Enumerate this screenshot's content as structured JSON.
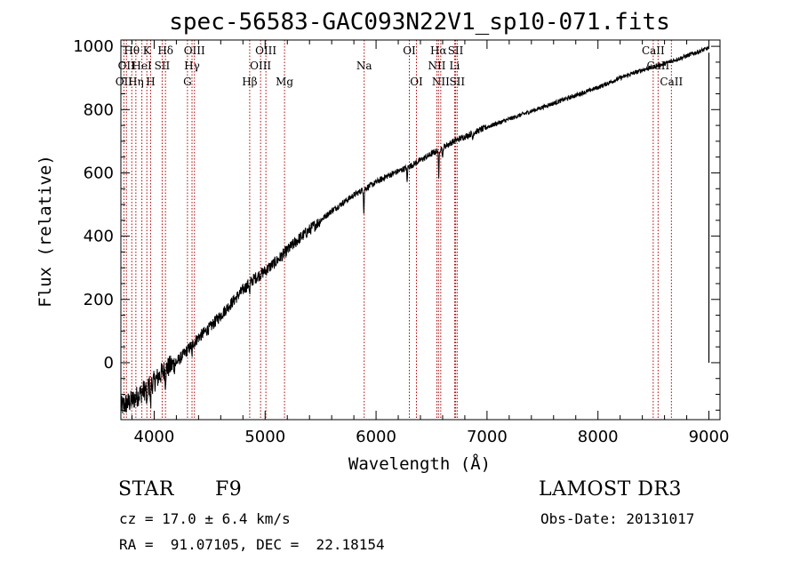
{
  "chart_data": {
    "type": "line",
    "title": "spec-56583-GAC093N22V1_sp10-071.fits",
    "xlabel": "Wavelength (Å)",
    "ylabel": "Flux (relative)",
    "xlim": [
      3700,
      9100
    ],
    "ylim": [
      -180,
      1020
    ],
    "xticks": [
      4000,
      5000,
      6000,
      7000,
      8000,
      9000
    ],
    "yticks": [
      0,
      200,
      400,
      600,
      800,
      1000
    ],
    "spectrum_anchors": {
      "x": [
        3700,
        3800,
        3900,
        4000,
        4100,
        4200,
        4300,
        4400,
        4500,
        4600,
        4700,
        4800,
        4900,
        5000,
        5100,
        5200,
        5300,
        5400,
        5500,
        5600,
        5700,
        5800,
        5900,
        6000,
        6100,
        6200,
        6300,
        6400,
        6500,
        6600,
        6700,
        6800,
        6900,
        7000,
        7200,
        7400,
        7600,
        7800,
        8000,
        8200,
        8400,
        8600,
        8800,
        9000
      ],
      "y": [
        -140,
        -120,
        -90,
        -60,
        -20,
        0,
        40,
        80,
        110,
        150,
        190,
        230,
        265,
        290,
        320,
        355,
        390,
        420,
        450,
        480,
        505,
        530,
        550,
        570,
        590,
        605,
        620,
        640,
        660,
        680,
        700,
        715,
        730,
        745,
        770,
        795,
        820,
        845,
        870,
        900,
        925,
        945,
        970,
        995
      ]
    },
    "absorption_dips": [
      {
        "x": 5890,
        "depth": 70
      },
      {
        "x": 6280,
        "depth": 50
      },
      {
        "x": 6565,
        "depth": 100
      },
      {
        "x": 6600,
        "depth": 40
      },
      {
        "x": 6870,
        "depth": 20
      },
      {
        "x": 4861,
        "depth": 40
      },
      {
        "x": 4340,
        "depth": 40
      },
      {
        "x": 4101,
        "depth": 40
      },
      {
        "x": 3934,
        "depth": 80
      },
      {
        "x": 3968,
        "depth": 80
      }
    ],
    "spectral_lines": [
      {
        "x": 3727,
        "label": "OII",
        "row": 2
      },
      {
        "x": 3750,
        "label": "OII",
        "row": 1
      },
      {
        "x": 3798,
        "label": "Hθ",
        "row": 0
      },
      {
        "x": 3835,
        "label": "Hη",
        "row": 2
      },
      {
        "x": 3889,
        "label": "HeI",
        "row": 1
      },
      {
        "x": 3934,
        "label": "K",
        "row": 0
      },
      {
        "x": 3968,
        "label": "H",
        "row": 2
      },
      {
        "x": 4072,
        "label": "SII",
        "row": 1
      },
      {
        "x": 4102,
        "label": "Hδ",
        "row": 0
      },
      {
        "x": 4300,
        "label": "G",
        "row": 2
      },
      {
        "x": 4341,
        "label": "Hγ",
        "row": 1
      },
      {
        "x": 4363,
        "label": "OIII",
        "row": 0
      },
      {
        "x": 4861,
        "label": "Hβ",
        "row": 2
      },
      {
        "x": 4959,
        "label": "OIII",
        "row": 1
      },
      {
        "x": 5007,
        "label": "OIII",
        "row": 0
      },
      {
        "x": 5175,
        "label": "Mg",
        "row": 2
      },
      {
        "x": 5893,
        "label": "Na",
        "row": 1
      },
      {
        "x": 6300,
        "label": "OI",
        "row": 0
      },
      {
        "x": 6364,
        "label": "OI",
        "row": 2
      },
      {
        "x": 6548,
        "label": "NII",
        "row": 1
      },
      {
        "x": 6563,
        "label": "Hα",
        "row": 0
      },
      {
        "x": 6583,
        "label": "NII",
        "row": 2
      },
      {
        "x": 6708,
        "label": "Li",
        "row": 1
      },
      {
        "x": 6717,
        "label": "SII",
        "row": 0
      },
      {
        "x": 6731,
        "label": "SII",
        "row": 2
      },
      {
        "x": 8498,
        "label": "CaII",
        "row": 0
      },
      {
        "x": 8542,
        "label": "CaII",
        "row": 1
      },
      {
        "x": 8662,
        "label": "CaII",
        "row": 2
      }
    ],
    "end_spike": {
      "x": 9000,
      "y_top": 980,
      "y_bottom": 0
    }
  },
  "info": {
    "object_class": "STAR",
    "subclass": "F9",
    "survey": "LAMOST DR3",
    "cz_line": "cz = 17.0 ± 6.4 km/s",
    "obs_date_line": "Obs-Date: 20131017",
    "coords_line": "RA =  91.07105, DEC =  22.18154"
  }
}
